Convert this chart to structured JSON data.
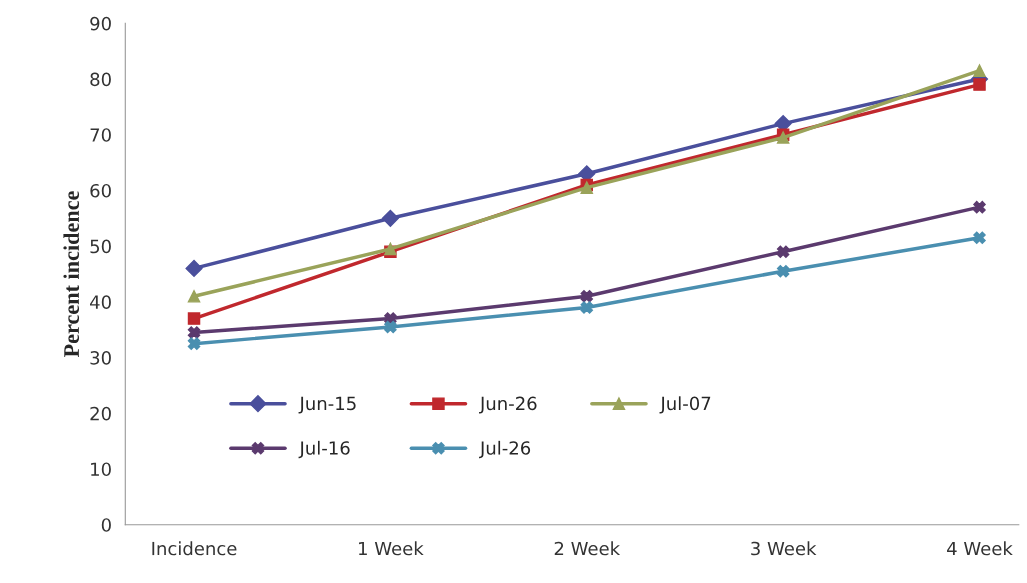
{
  "chart_data": {
    "type": "line",
    "ylabel": "Percent incidence",
    "categories": [
      "Incidence",
      "1 Week",
      "2 Week",
      "3 Week",
      "4 Week"
    ],
    "series": [
      {
        "name": "Jun-15",
        "color": "#4a4f9c",
        "marker": "diamond",
        "values": [
          46,
          55,
          63,
          72,
          80
        ]
      },
      {
        "name": "Jun-26",
        "color": "#c0282d",
        "marker": "square",
        "values": [
          37,
          49,
          61,
          70,
          79
        ]
      },
      {
        "name": "Jul-07",
        "color": "#9aa35a",
        "marker": "triangle",
        "values": [
          41,
          49.5,
          60.5,
          69.5,
          81.5
        ]
      },
      {
        "name": "Jul-16",
        "color": "#5b3a6e",
        "marker": "cross",
        "values": [
          34.5,
          37,
          41,
          49,
          57
        ]
      },
      {
        "name": "Jul-26",
        "color": "#4a8fb0",
        "marker": "cross",
        "values": [
          32.5,
          35.5,
          39,
          45.5,
          51.5
        ]
      }
    ],
    "ylim": [
      0,
      90
    ],
    "yticks": [
      0,
      10,
      20,
      30,
      40,
      50,
      60,
      70,
      80,
      90
    ],
    "grid": false,
    "legend": "bottom left",
    "line_style": "solid"
  }
}
